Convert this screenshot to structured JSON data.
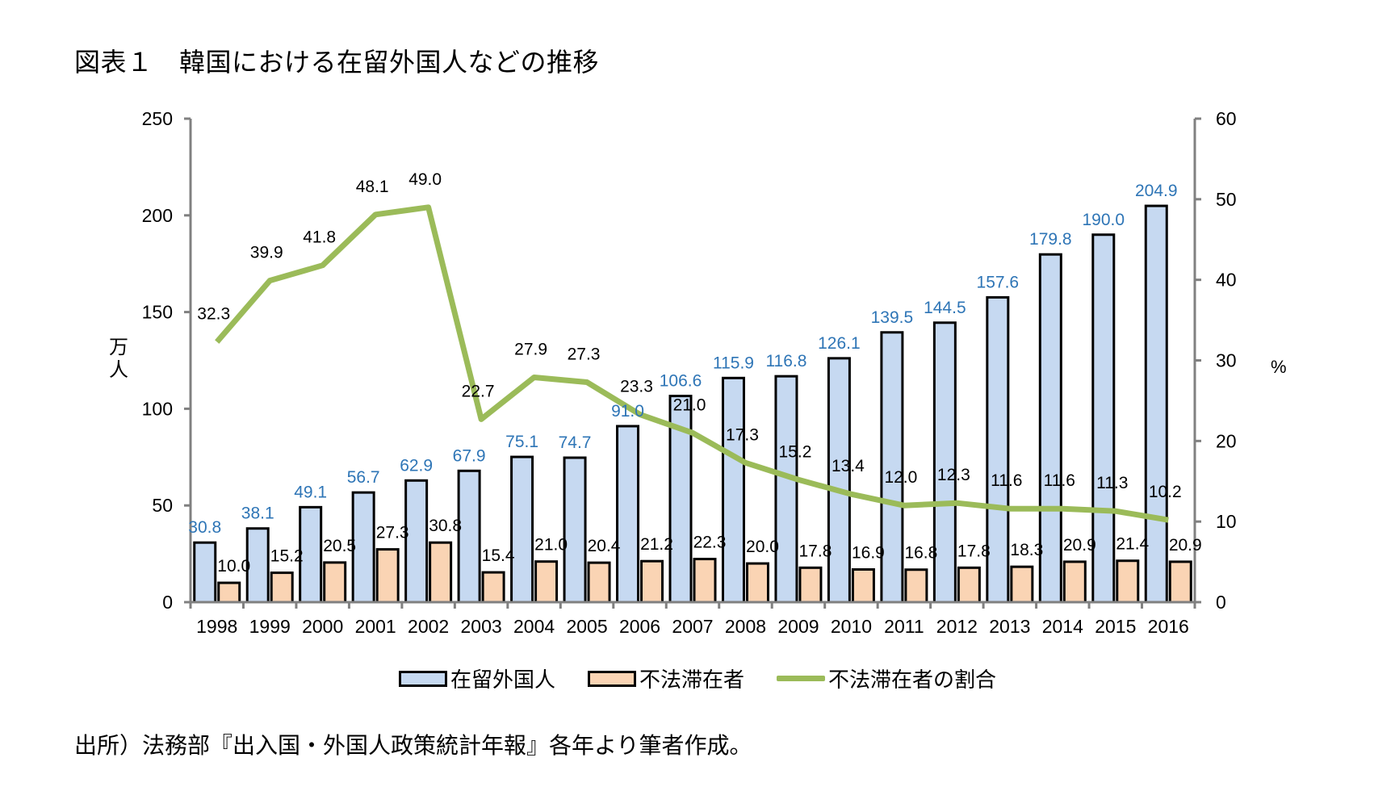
{
  "title": "図表１　韓国における在留外国人などの推移",
  "source_note": "出所）法務部『出入国・外国人政策統計年報』各年より筆者作成。",
  "colors": {
    "foreign_residents": "#c6d9f1",
    "illegal_stayers": "#fad4b4",
    "ratio_line": "#9bbb59",
    "foreign_label": "#2e75b6",
    "axis": "#808080"
  },
  "legend": [
    "在留外国人",
    "不法滞在者",
    "不法滞在者の割合"
  ],
  "chart_data": {
    "type": "bar+line",
    "title": "図表１　韓国における在留外国人などの推移",
    "categories": [
      "1998",
      "1999",
      "2000",
      "2001",
      "2002",
      "2003",
      "2004",
      "2005",
      "2006",
      "2007",
      "2008",
      "2009",
      "2010",
      "2011",
      "2012",
      "2013",
      "2014",
      "2015",
      "2016"
    ],
    "series": [
      {
        "name": "在留外国人",
        "type": "bar",
        "axis": "left",
        "values": [
          30.8,
          38.1,
          49.1,
          56.7,
          62.9,
          67.9,
          75.1,
          74.7,
          91.0,
          106.6,
          115.9,
          116.8,
          126.1,
          139.5,
          144.5,
          157.6,
          179.8,
          190.0,
          204.9
        ]
      },
      {
        "name": "不法滞在者",
        "type": "bar",
        "axis": "left",
        "values": [
          10.0,
          15.2,
          20.5,
          27.3,
          30.8,
          15.4,
          21.0,
          20.4,
          21.2,
          22.3,
          20.0,
          17.8,
          16.9,
          16.8,
          17.8,
          18.3,
          20.9,
          21.4,
          20.9
        ]
      },
      {
        "name": "不法滞在者の割合",
        "type": "line",
        "axis": "right",
        "values": [
          32.3,
          39.9,
          41.8,
          48.1,
          49.0,
          22.7,
          27.9,
          27.3,
          23.3,
          21.0,
          17.3,
          15.2,
          13.4,
          12.0,
          12.3,
          11.6,
          11.6,
          11.3,
          10.2
        ]
      }
    ],
    "ylabel_left": "万人",
    "ylabel_right": "%",
    "ylim_left": [
      0,
      250
    ],
    "yticks_left": [
      0,
      50,
      100,
      150,
      200,
      250
    ],
    "ylim_right": [
      0,
      60
    ],
    "yticks_right": [
      0,
      10,
      20,
      30,
      40,
      50,
      60
    ],
    "grid": false,
    "legend_position": "bottom"
  }
}
